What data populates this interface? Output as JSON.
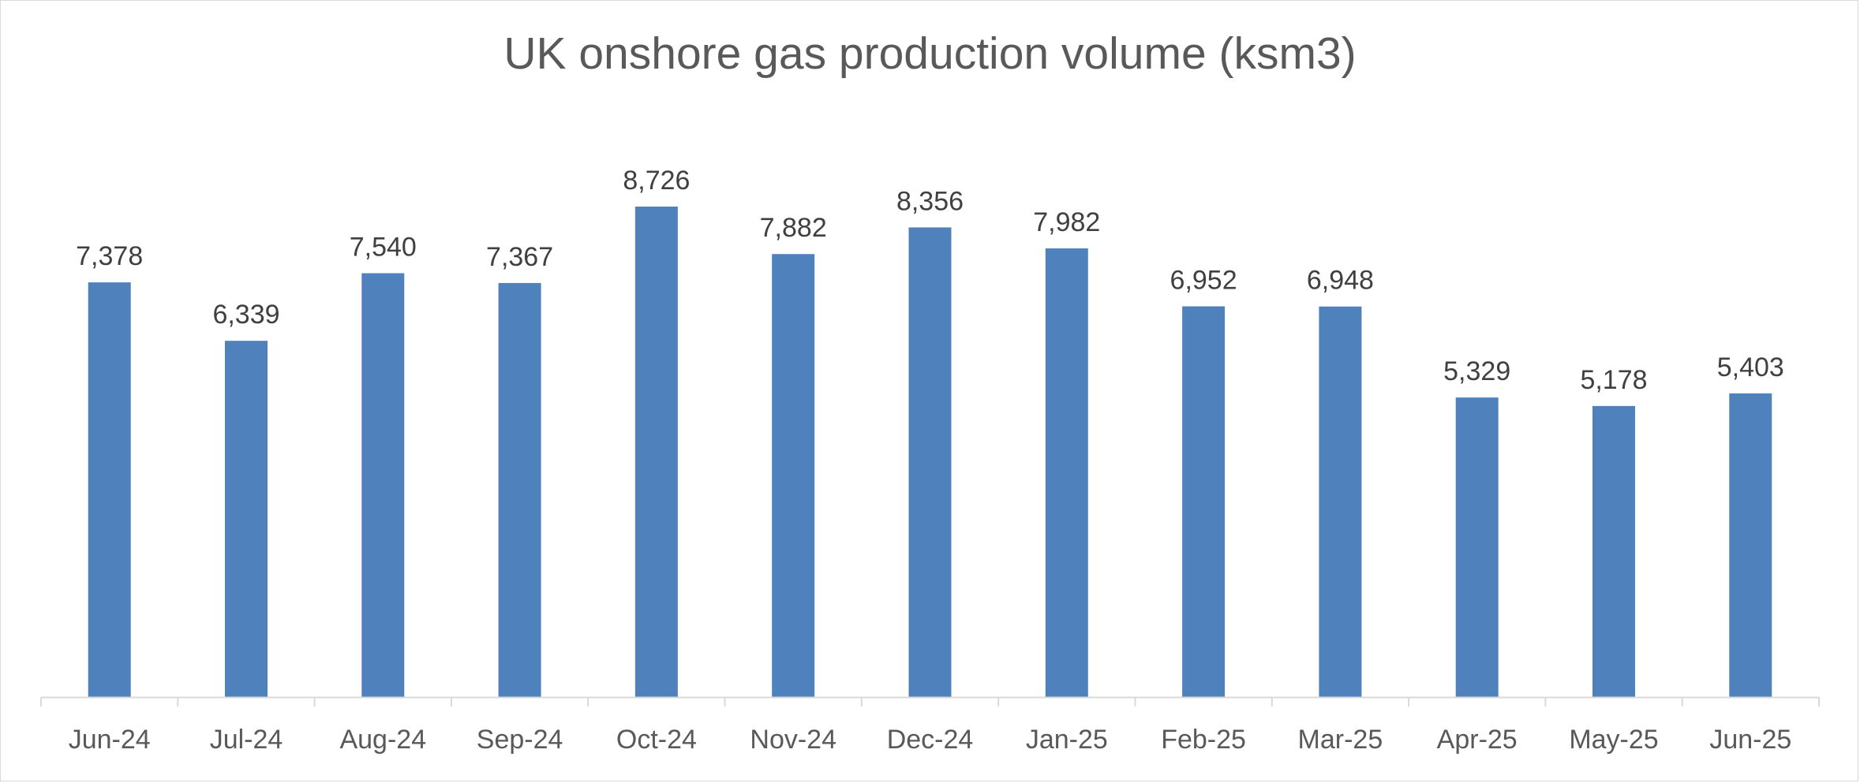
{
  "chart_data": {
    "type": "bar",
    "title": "UK onshore gas production volume (ksm3)",
    "categories": [
      "Jun-24",
      "Jul-24",
      "Aug-24",
      "Sep-24",
      "Oct-24",
      "Nov-24",
      "Dec-24",
      "Jan-25",
      "Feb-25",
      "Mar-25",
      "Apr-25",
      "May-25",
      "Jun-25"
    ],
    "values": [
      7378,
      6339,
      7540,
      7367,
      8726,
      7882,
      8356,
      7982,
      6952,
      6948,
      5329,
      5178,
      5403
    ],
    "value_labels": [
      "7,378",
      "6,339",
      "7,540",
      "7,367",
      "8,726",
      "7,882",
      "8,356",
      "7,982",
      "6,952",
      "6,948",
      "5,329",
      "5,178",
      "5,403"
    ],
    "xlabel": "",
    "ylabel": "",
    "ylim": [
      0,
      10000
    ],
    "grid": false,
    "legend": "none",
    "bar_color": "#4f81bd",
    "axis_color": "#d9d9d9"
  }
}
